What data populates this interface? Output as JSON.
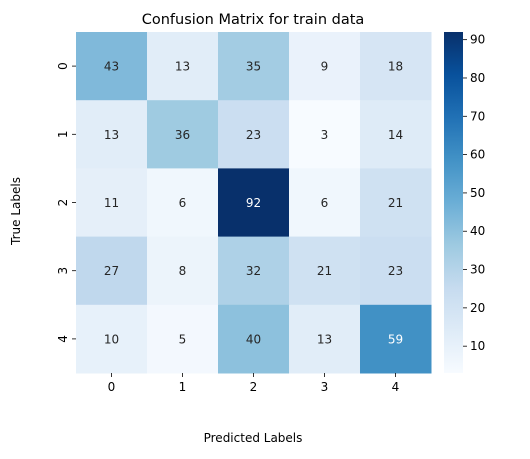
{
  "chart_data": {
    "type": "heatmap",
    "title": "Confusion Matrix for train data",
    "xlabel": "Predicted Labels",
    "ylabel": "True Labels",
    "x_categories": [
      "0",
      "1",
      "2",
      "3",
      "4"
    ],
    "y_categories": [
      "0",
      "1",
      "2",
      "3",
      "4"
    ],
    "values": [
      [
        43,
        13,
        35,
        9,
        18
      ],
      [
        13,
        36,
        23,
        3,
        14
      ],
      [
        11,
        6,
        92,
        6,
        21
      ],
      [
        27,
        8,
        32,
        21,
        23
      ],
      [
        10,
        5,
        40,
        13,
        59
      ]
    ],
    "colormap": "Blues",
    "value_range": [
      3,
      92
    ],
    "colorbar_ticks": [
      10,
      20,
      30,
      40,
      50,
      60,
      70,
      80,
      90
    ]
  }
}
